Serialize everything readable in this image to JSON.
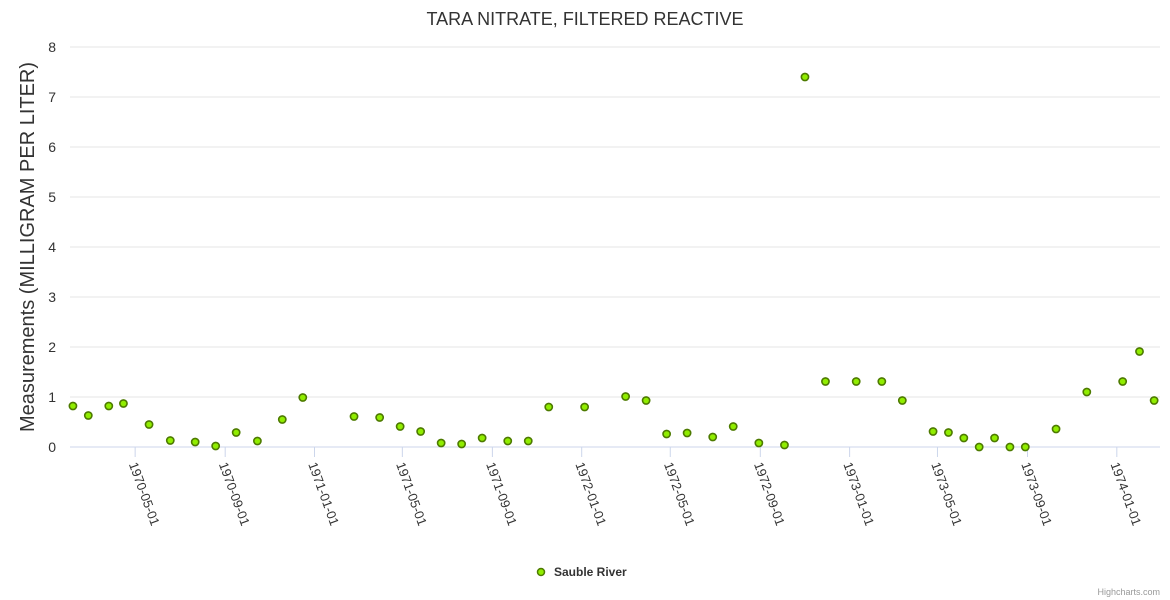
{
  "chart_data": {
    "type": "scatter",
    "title": "TARA NITRATE, FILTERED REACTIVE",
    "ylabel": "Measurements (MILLIGRAM PER LITER)",
    "xlabel": "",
    "ylim": [
      0,
      8
    ],
    "yticks": [
      "0",
      "1",
      "2",
      "3",
      "4",
      "5",
      "6",
      "7",
      "8"
    ],
    "xlim": [
      "1970-02-01",
      "1974-03-01"
    ],
    "xticks": [
      "1970-05-01",
      "1970-09-01",
      "1971-01-01",
      "1971-05-01",
      "1971-09-01",
      "1972-01-01",
      "1972-05-01",
      "1972-09-01",
      "1973-01-01",
      "1973-05-01",
      "1973-09-01",
      "1974-01-01"
    ],
    "grid": true,
    "legend_position": "bottom-center",
    "series": [
      {
        "name": "Sauble River",
        "color": "#90ed00",
        "stroke": "#4d7a00",
        "points": [
          [
            "1970-02-05",
            0.82
          ],
          [
            "1970-02-26",
            0.63
          ],
          [
            "1970-03-26",
            0.82
          ],
          [
            "1970-04-15",
            0.87
          ],
          [
            "1970-05-20",
            0.45
          ],
          [
            "1970-06-18",
            0.13
          ],
          [
            "1970-07-22",
            0.1
          ],
          [
            "1970-08-19",
            0.02
          ],
          [
            "1970-09-16",
            0.29
          ],
          [
            "1970-10-15",
            0.12
          ],
          [
            "1970-11-18",
            0.55
          ],
          [
            "1970-12-16",
            0.99
          ],
          [
            "1971-02-24",
            0.61
          ],
          [
            "1971-03-31",
            0.59
          ],
          [
            "1971-04-28",
            0.41
          ],
          [
            "1971-05-26",
            0.31
          ],
          [
            "1971-06-23",
            0.08
          ],
          [
            "1971-07-21",
            0.06
          ],
          [
            "1971-08-18",
            0.18
          ],
          [
            "1971-09-22",
            0.12
          ],
          [
            "1971-10-20",
            0.12
          ],
          [
            "1971-11-17",
            0.8
          ],
          [
            "1972-01-05",
            0.8
          ],
          [
            "1972-03-01",
            1.01
          ],
          [
            "1972-03-29",
            0.93
          ],
          [
            "1972-04-26",
            0.26
          ],
          [
            "1972-05-24",
            0.28
          ],
          [
            "1972-06-28",
            0.2
          ],
          [
            "1972-07-26",
            0.41
          ],
          [
            "1972-08-30",
            0.08
          ],
          [
            "1972-10-04",
            0.04
          ],
          [
            "1972-11-01",
            7.4
          ],
          [
            "1972-11-29",
            1.31
          ],
          [
            "1973-01-10",
            1.31
          ],
          [
            "1973-02-14",
            1.31
          ],
          [
            "1973-03-14",
            0.93
          ],
          [
            "1973-04-25",
            0.31
          ],
          [
            "1973-05-16",
            0.29
          ],
          [
            "1973-06-06",
            0.18
          ],
          [
            "1973-06-27",
            0.0
          ],
          [
            "1973-07-18",
            0.18
          ],
          [
            "1973-08-08",
            0.0
          ],
          [
            "1973-08-29",
            0.0
          ],
          [
            "1973-10-10",
            0.36
          ],
          [
            "1973-11-21",
            1.1
          ],
          [
            "1974-01-09",
            1.31
          ],
          [
            "1974-02-01",
            1.91
          ],
          [
            "1974-02-21",
            0.93
          ]
        ]
      }
    ],
    "credits": "Highcharts.com"
  }
}
